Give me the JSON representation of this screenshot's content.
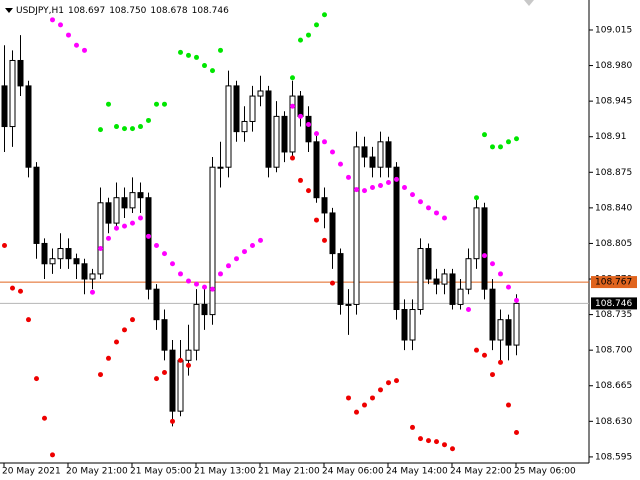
{
  "chart_data": {
    "type": "candlestick",
    "title": "USDJPY,H1",
    "title_values": [
      "108.697",
      "108.750",
      "108.678",
      "108.746"
    ],
    "ylim": [
      108.589,
      109.0445
    ],
    "yticks": [
      109.015,
      {
        "value": 108.98,
        "label": "108.980"
      },
      108.945,
      108.91,
      108.875,
      {
        "value": 108.84,
        "label": "108.840"
      },
      108.805,
      {
        "value": 108.77,
        "label": "108.770"
      },
      108.735,
      {
        "value": 108.7,
        "label": "108.700"
      },
      108.665,
      {
        "value": 108.63,
        "label": "108.630"
      },
      108.595
    ],
    "xticks": [
      {
        "value": 0,
        "label": "20 May 2021"
      },
      {
        "value": 8,
        "label": "20 May 21:00"
      },
      {
        "value": 16,
        "label": "21 May 05:00"
      },
      {
        "value": 24,
        "label": "21 May 13:00"
      },
      {
        "value": 32,
        "label": "21 May 21:00"
      },
      {
        "value": 40,
        "label": "24 May 06:00"
      },
      {
        "value": 48,
        "label": "24 May 14:00"
      },
      {
        "value": 56,
        "label": "24 May 22:00"
      },
      {
        "value": 64,
        "label": "25 May 06:00"
      }
    ],
    "open": [
      108.96,
      108.92,
      108.985,
      108.96,
      108.88,
      108.805,
      108.785,
      108.79,
      108.8,
      108.79,
      108.785,
      108.77,
      108.775,
      108.845,
      108.825,
      108.85,
      108.84,
      108.855,
      108.85,
      108.76,
      108.73,
      108.7,
      108.64,
      108.69,
      108.7,
      108.745,
      108.735,
      108.88,
      108.88,
      108.96,
      108.915,
      108.925,
      108.95,
      108.955,
      108.88,
      108.93,
      108.895,
      108.95,
      108.93,
      108.905,
      108.85,
      108.835,
      108.795,
      108.745,
      108.745,
      108.9,
      108.89,
      108.88,
      108.905,
      108.88,
      108.74,
      108.71,
      108.74,
      108.8,
      108.77,
      108.765,
      108.775,
      108.745,
      108.76,
      108.79,
      108.84,
      108.76,
      108.71,
      108.73,
      108.705
    ],
    "high": [
      109.0,
      108.995,
      109.01,
      108.965,
      108.885,
      108.81,
      108.8,
      108.815,
      108.81,
      108.795,
      108.79,
      108.78,
      108.86,
      108.85,
      108.865,
      108.86,
      108.87,
      108.865,
      108.855,
      108.765,
      108.74,
      108.71,
      108.71,
      108.725,
      108.76,
      108.76,
      108.89,
      108.905,
      108.975,
      108.965,
      108.94,
      108.96,
      108.97,
      108.96,
      108.945,
      108.935,
      108.965,
      108.955,
      108.94,
      108.915,
      108.86,
      108.84,
      108.8,
      108.76,
      108.915,
      108.91,
      108.9,
      108.915,
      108.91,
      108.885,
      108.75,
      108.75,
      108.81,
      108.805,
      108.78,
      108.78,
      108.78,
      108.77,
      108.8,
      108.85,
      108.845,
      108.77,
      108.74,
      108.735,
      108.755
    ],
    "low": [
      108.895,
      108.9,
      108.95,
      108.87,
      108.79,
      108.77,
      108.775,
      108.78,
      108.78,
      108.77,
      108.755,
      108.76,
      108.77,
      108.815,
      108.82,
      108.83,
      108.835,
      108.835,
      108.75,
      108.72,
      108.69,
      108.625,
      108.635,
      108.675,
      108.69,
      108.72,
      108.725,
      108.86,
      108.87,
      108.905,
      108.905,
      108.915,
      108.94,
      108.87,
      108.875,
      108.885,
      108.89,
      108.92,
      108.895,
      108.845,
      108.82,
      108.78,
      108.735,
      108.715,
      108.735,
      108.88,
      108.87,
      108.87,
      108.87,
      108.73,
      108.7,
      108.7,
      108.735,
      108.765,
      108.755,
      108.755,
      108.74,
      108.74,
      108.755,
      108.78,
      108.75,
      108.7,
      108.69,
      108.69,
      108.695
    ],
    "close": [
      108.92,
      108.985,
      108.96,
      108.88,
      108.805,
      108.785,
      108.79,
      108.8,
      108.79,
      108.785,
      108.77,
      108.775,
      108.845,
      108.825,
      108.85,
      108.84,
      108.855,
      108.85,
      108.76,
      108.73,
      108.7,
      108.64,
      108.69,
      108.7,
      108.745,
      108.735,
      108.88,
      108.88,
      108.96,
      108.915,
      108.925,
      108.95,
      108.955,
      108.88,
      108.93,
      108.895,
      108.95,
      108.93,
      108.905,
      108.85,
      108.835,
      108.795,
      108.745,
      108.745,
      108.9,
      108.89,
      108.88,
      108.905,
      108.88,
      108.74,
      108.71,
      108.74,
      108.8,
      108.77,
      108.765,
      108.775,
      108.745,
      108.76,
      108.79,
      108.84,
      108.76,
      108.71,
      108.73,
      108.705,
      108.746
    ],
    "overlays": [
      {
        "color": "#00e600",
        "values": [
          null,
          null,
          null,
          null,
          null,
          null,
          null,
          null,
          null,
          null,
          null,
          null,
          108.917,
          108.942,
          108.92,
          108.918,
          108.918,
          108.92,
          108.926,
          108.942,
          108.942,
          null,
          108.993,
          108.99,
          108.988,
          108.98,
          108.975,
          108.995,
          null,
          null,
          null,
          null,
          null,
          null,
          null,
          null,
          108.968,
          109.005,
          109.01,
          109.02,
          109.03,
          null,
          null,
          null,
          null,
          null,
          null,
          null,
          null,
          null,
          null,
          null,
          null,
          null,
          null,
          null,
          null,
          null,
          null,
          108.85,
          108.912,
          108.9,
          108.9,
          108.905,
          108.908
        ]
      },
      {
        "color": "#ff00ff",
        "values": [
          null,
          null,
          null,
          null,
          null,
          null,
          109.025,
          109.02,
          109.01,
          109.0,
          108.995,
          108.757,
          108.8,
          108.81,
          108.82,
          108.822,
          108.825,
          108.83,
          108.812,
          108.803,
          108.795,
          108.785,
          108.775,
          108.768,
          108.765,
          108.762,
          108.76,
          108.775,
          108.783,
          108.79,
          108.797,
          108.803,
          108.808,
          null,
          null,
          null,
          108.94,
          108.93,
          108.922,
          108.913,
          108.905,
          108.895,
          108.883,
          108.87,
          108.858,
          108.857,
          108.86,
          108.862,
          108.865,
          108.868,
          108.86,
          108.853,
          108.846,
          108.84,
          108.835,
          108.83,
          null,
          null,
          108.74,
          null,
          108.793,
          108.785,
          108.775,
          108.762,
          108.749
        ]
      },
      {
        "color": "#ee0000",
        "values": [
          108.803,
          108.761,
          108.758,
          108.73,
          108.672,
          108.633,
          108.597,
          null,
          null,
          null,
          null,
          null,
          108.676,
          108.692,
          108.708,
          108.72,
          108.73,
          null,
          null,
          108.672,
          108.678,
          108.63,
          108.69,
          108.685,
          null,
          null,
          null,
          null,
          null,
          null,
          null,
          null,
          null,
          null,
          null,
          null,
          108.889,
          108.867,
          108.857,
          108.828,
          108.808,
          108.766,
          null,
          108.653,
          108.639,
          108.646,
          108.653,
          108.661,
          108.668,
          108.67,
          null,
          108.624,
          108.613,
          108.611,
          108.61,
          108.607,
          108.603,
          null,
          null,
          108.7,
          108.695,
          108.676,
          108.688,
          108.646,
          108.619
        ]
      }
    ],
    "price_lines": [
      {
        "value": 108.767,
        "color": "#e0641e",
        "label_bg": "#e0641e",
        "label_color": "#000000"
      },
      {
        "value": 108.746,
        "color": "#b4b4b4",
        "label_bg": "#000000",
        "label_color": "#ffffff"
      }
    ]
  }
}
